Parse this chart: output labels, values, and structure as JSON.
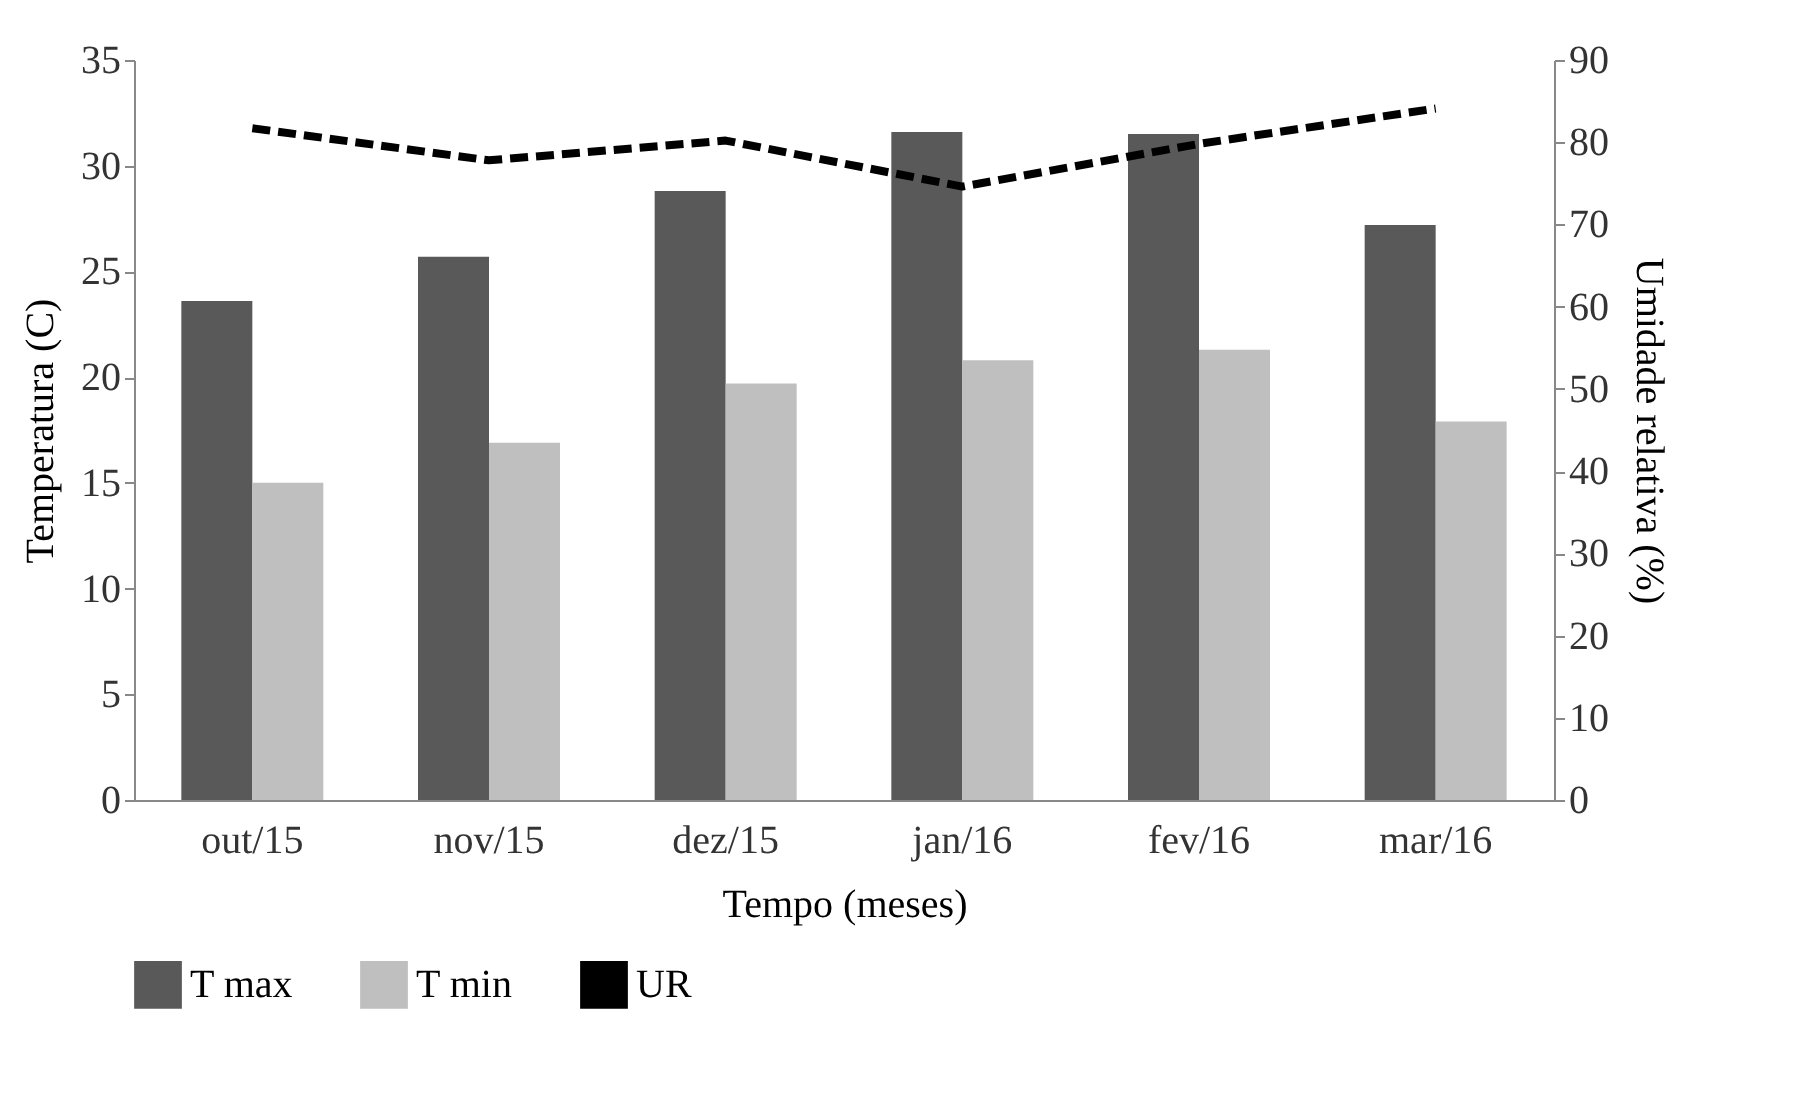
{
  "chart_data": {
    "type": "bar",
    "xlabel": "Tempo (meses)",
    "ylabel": "Temperatura (C)",
    "y2label": "Umidade relativa (%)",
    "categories": [
      "out/15",
      "nov/15",
      "dez/15",
      "jan/16",
      "fev/16",
      "mar/16"
    ],
    "series": [
      {
        "name": "T max",
        "color": "#595959",
        "values": [
          23.6,
          25.7,
          28.8,
          31.6,
          31.5,
          27.2
        ]
      },
      {
        "name": "T min",
        "color": "#bfbfbf",
        "values": [
          15.0,
          16.9,
          19.7,
          20.8,
          21.3,
          17.9
        ]
      },
      {
        "name": "UR",
        "type": "line",
        "axis": "y2",
        "color": "#000000",
        "line_style": "dashed",
        "values": [
          81.7,
          77.8,
          80.2,
          74.6,
          79.8,
          84.1
        ]
      }
    ],
    "ylim": [
      0,
      35
    ],
    "yticks": [
      0,
      5,
      10,
      15,
      20,
      25,
      30,
      35
    ],
    "y2lim": [
      0,
      90
    ],
    "y2ticks": [
      0,
      10,
      20,
      30,
      40,
      50,
      60,
      70,
      80,
      90
    ],
    "grid": false,
    "legend": "bottom"
  }
}
